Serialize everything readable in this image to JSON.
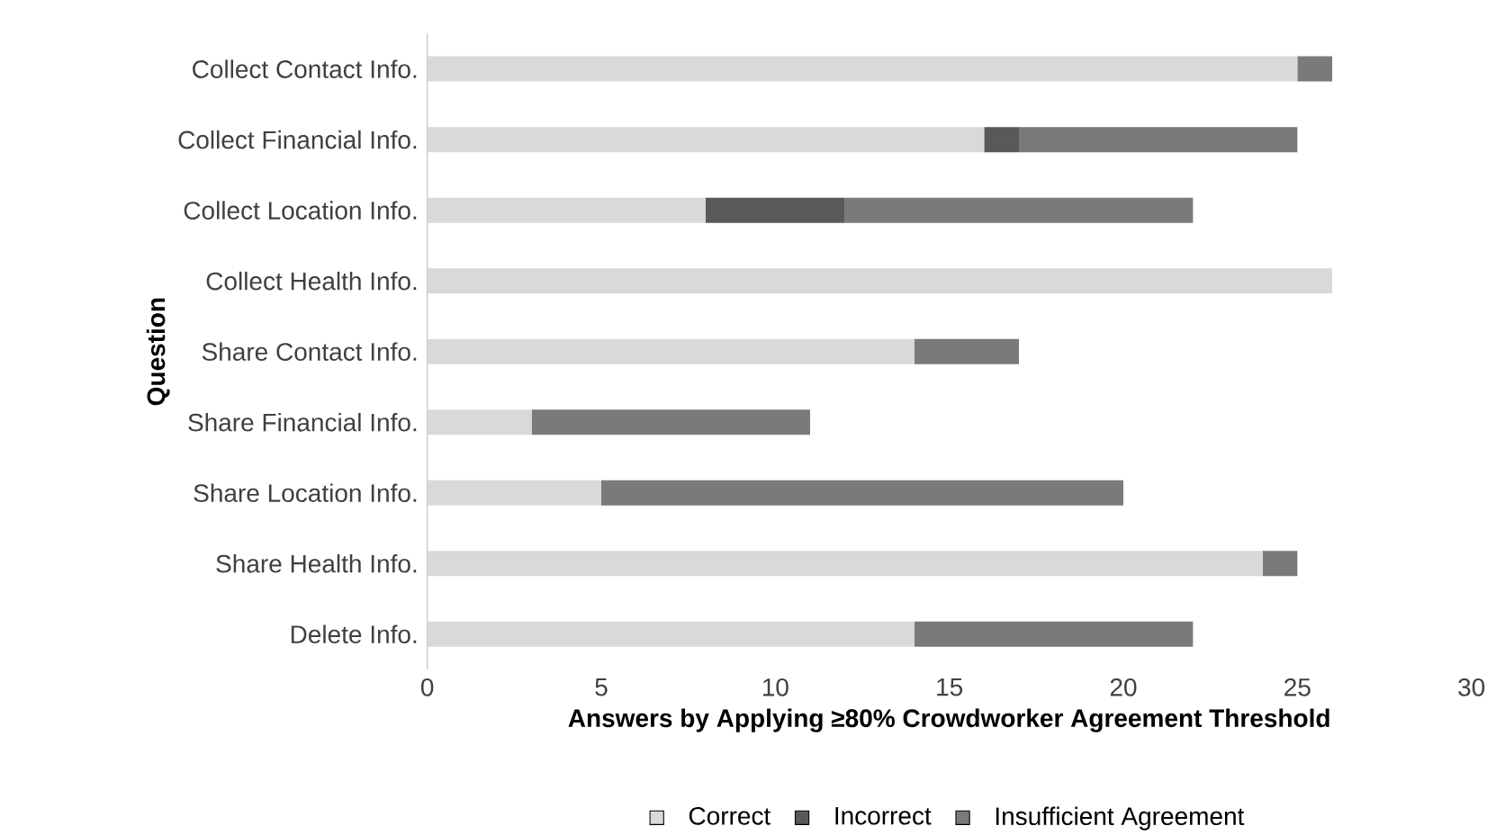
{
  "chart_data": {
    "type": "bar",
    "orientation": "horizontal",
    "stacked": true,
    "xlabel": "Answers by Applying ≥80% Crowdworker Agreement Threshold",
    "ylabel": "Question",
    "categories": [
      "Collect Contact Info.",
      "Collect Financial Info.",
      "Collect Location Info.",
      "Collect Health Info.",
      "Share Contact Info.",
      "Share Financial Info.",
      "Share Location Info.",
      "Share Health Info.",
      "Delete Info."
    ],
    "series": [
      {
        "name": "Correct",
        "color": "#d9d9d9",
        "values": [
          25,
          16,
          8,
          26,
          14,
          3,
          5,
          24,
          14
        ]
      },
      {
        "name": "Incorrect",
        "color": "#595959",
        "values": [
          0,
          1,
          4,
          0,
          0,
          0,
          0,
          0,
          0
        ]
      },
      {
        "name": "Insufficient Agreement",
        "color": "#7a7a7a",
        "values": [
          1,
          8,
          10,
          0,
          3,
          8,
          15,
          1,
          8
        ]
      }
    ],
    "xlim": [
      0,
      30
    ],
    "xticks": [
      0,
      5,
      10,
      15,
      20,
      25,
      30
    ],
    "grid": false,
    "legend": "bottom"
  }
}
